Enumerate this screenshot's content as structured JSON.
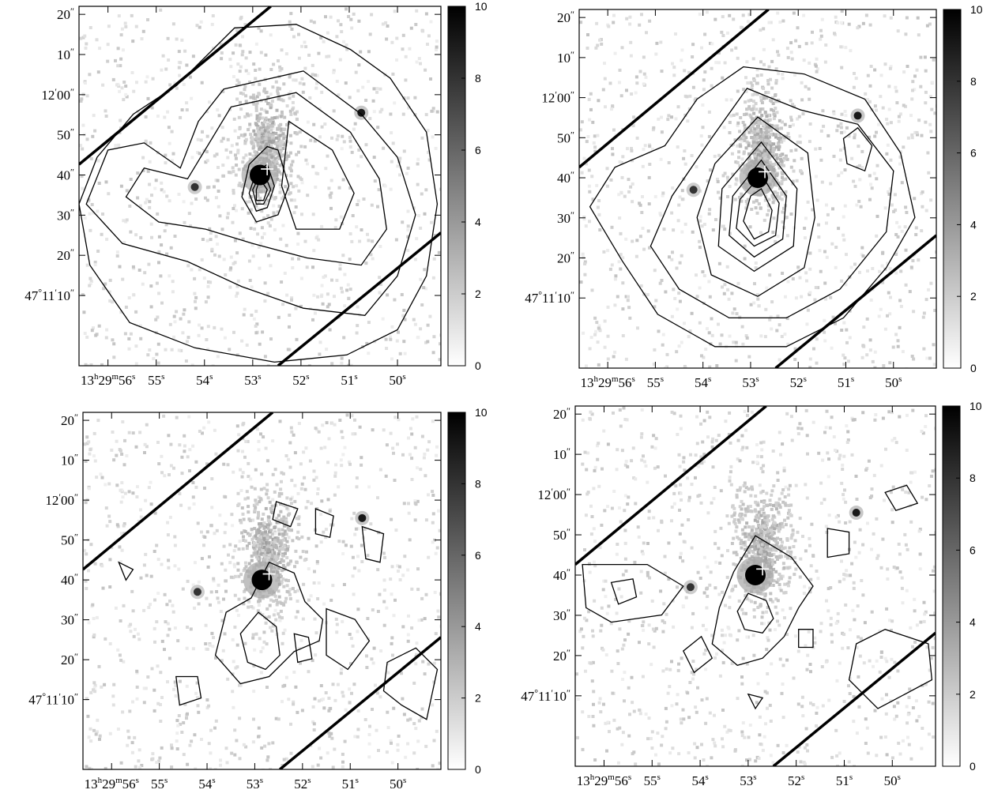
{
  "figure": {
    "panels": [
      {
        "contour_levels": 8
      },
      {
        "contour_levels": 8
      },
      {
        "contour_levels": 2
      },
      {
        "contour_levels": 2
      }
    ]
  },
  "chart_data": {
    "type": "heatmap",
    "layout": "2x2 panels",
    "colormap": "grayscale (white = 0, black = 10)",
    "colorbar": {
      "min": 0,
      "max": 10,
      "ticks": [
        "0",
        "2",
        "4",
        "6",
        "8",
        "10"
      ]
    },
    "xaxis": {
      "unit": "right ascension",
      "range_seconds": [
        56.6,
        49.1
      ],
      "ticks": [
        {
          "value": 56,
          "h": "13",
          "hs": "h",
          "m": "29",
          "ms": "m",
          "s": "56",
          "ss": "s"
        },
        {
          "value": 55,
          "s": "55",
          "ss": "s"
        },
        {
          "value": 54,
          "s": "54",
          "ss": "s"
        },
        {
          "value": 53,
          "s": "53",
          "ss": "s"
        },
        {
          "value": 52,
          "s": "52",
          "ss": "s"
        },
        {
          "value": 51,
          "s": "51",
          "ss": "s"
        },
        {
          "value": 50,
          "s": "50",
          "ss": "s"
        }
      ]
    },
    "yaxis": {
      "unit": "declination",
      "range_arcsec_rel_47_11_00": [
        -7.5,
        82
      ],
      "ticks": [
        {
          "value": 10,
          "d": "47",
          "ds": "°",
          "m": "11",
          "ms": "′",
          "s": "10",
          "ss": "″"
        },
        {
          "value": 20,
          "s": "20",
          "ss": "″"
        },
        {
          "value": 30,
          "s": "30",
          "ss": "″"
        },
        {
          "value": 40,
          "s": "40",
          "ss": "″"
        },
        {
          "value": 50,
          "s": "50",
          "ss": "″"
        },
        {
          "value": 60,
          "m": "12",
          "ms": "′",
          "s": "00",
          "ss": "″"
        },
        {
          "value": 70,
          "s": "10",
          "ss": "″"
        },
        {
          "value": 80,
          "s": "20",
          "ss": "″"
        }
      ]
    },
    "markers": [
      {
        "type": "cross",
        "ra_s": 52.7,
        "dec_rel": 41.5
      }
    ],
    "bright_sources": [
      {
        "ra_s": 52.85,
        "dec_rel": 40,
        "peak": 10
      },
      {
        "ra_s": 50.75,
        "dec_rel": 55.5,
        "peak": 9
      },
      {
        "ra_s": 54.2,
        "dec_rel": 37,
        "peak": 8
      }
    ]
  }
}
